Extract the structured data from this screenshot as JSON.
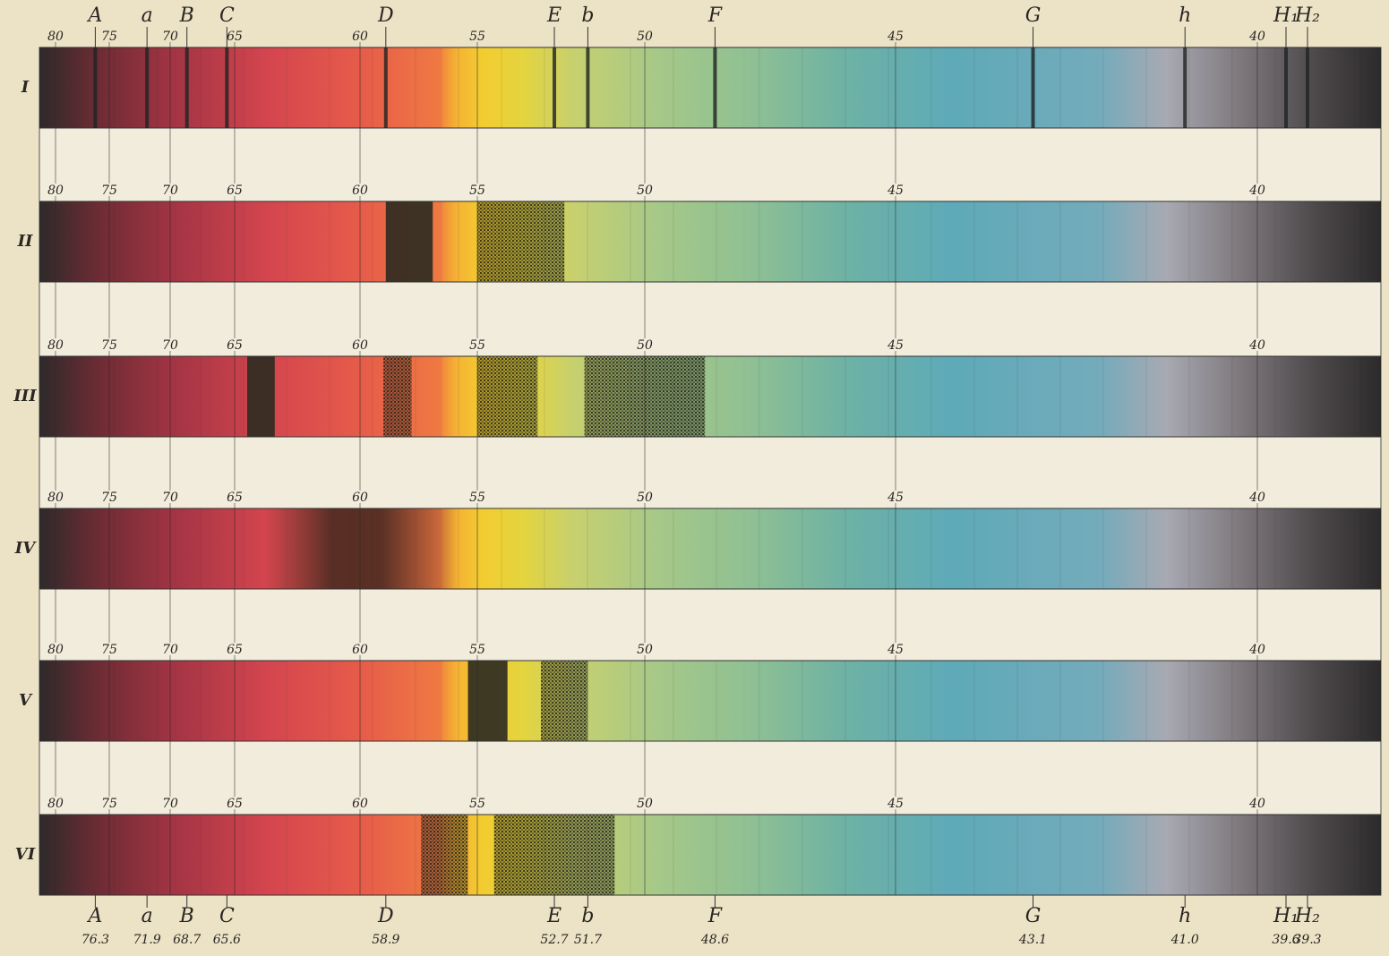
{
  "scale": {
    "ticks": [
      80,
      75,
      70,
      65,
      60,
      55,
      50,
      45,
      40
    ]
  },
  "rows": [
    {
      "label": "I",
      "bands": []
    },
    {
      "label": "II",
      "bands": [
        {
          "from": 58.9,
          "to": 56.9,
          "style": "dark"
        },
        {
          "from": 55.0,
          "to": 52.4,
          "style": "stipple"
        }
      ]
    },
    {
      "label": "III",
      "bands": [
        {
          "from": 64.5,
          "to": 63.4,
          "style": "dark"
        },
        {
          "from": 59.0,
          "to": 57.8,
          "style": "stipple"
        },
        {
          "from": 55.0,
          "to": 53.2,
          "style": "stipple"
        },
        {
          "from": 51.8,
          "to": 48.8,
          "style": "stipple"
        }
      ]
    },
    {
      "label": "IV",
      "bands": [
        {
          "from": 63.8,
          "to": 55.8,
          "style": "fade"
        }
      ]
    },
    {
      "label": "V",
      "bands": [
        {
          "from": 55.4,
          "to": 54.1,
          "style": "dark"
        },
        {
          "from": 53.1,
          "to": 51.7,
          "style": "stipple"
        }
      ]
    },
    {
      "label": "VI",
      "bands": [
        {
          "from": 57.4,
          "to": 55.4,
          "style": "stipple"
        },
        {
          "from": 54.5,
          "to": 50.9,
          "style": "stipple"
        }
      ]
    }
  ],
  "lines": [
    {
      "symbol": "A",
      "wavelength": 76.3
    },
    {
      "symbol": "a",
      "wavelength": 71.9
    },
    {
      "symbol": "B",
      "wavelength": 68.7
    },
    {
      "symbol": "C",
      "wavelength": 65.6
    },
    {
      "symbol": "D",
      "wavelength": 58.9
    },
    {
      "symbol": "E",
      "wavelength": 52.7
    },
    {
      "symbol": "b",
      "wavelength": 51.7
    },
    {
      "symbol": "F",
      "wavelength": 48.6
    },
    {
      "symbol": "G",
      "wavelength": 43.1
    },
    {
      "symbol": "h",
      "wavelength": {
        "value": 41,
        "label": "41.0"
      }
    },
    {
      "symbol": "H₁",
      "wavelength": 39.6
    },
    {
      "symbol": "H₂",
      "wavelength": 39.3
    }
  ]
}
